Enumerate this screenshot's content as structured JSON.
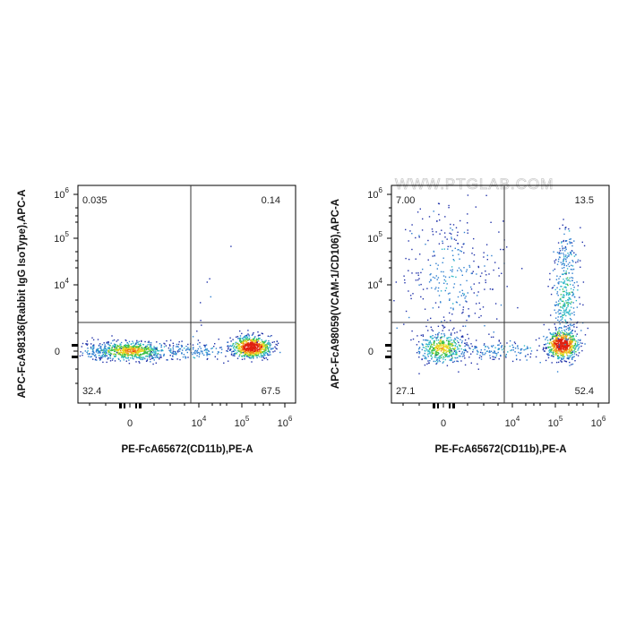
{
  "watermark": "WWW.PTGLAB.COM",
  "chart_data": [
    {
      "type": "scatter",
      "subtype": "flow-cytometry-density-dot-plot",
      "title": "",
      "xlabel": "PE-FcA65672(CD11b),PE-A",
      "ylabel": "APC-FcA98136(Rabbit IgG IsoType),APC-A",
      "x_ticks": [
        "0",
        "10^4",
        "10^5",
        "10^6"
      ],
      "y_ticks": [
        "0",
        "10^4",
        "10^5",
        "10^6"
      ],
      "quadrants": {
        "upper_left": "0.035",
        "upper_right": "0.14",
        "lower_left": "32.4",
        "lower_right": "67.5"
      },
      "populations": [
        {
          "region": "lower-left",
          "percent": 32.4
        },
        {
          "region": "lower-right",
          "percent": 67.5
        },
        {
          "region": "upper-left",
          "percent": 0.035
        },
        {
          "region": "upper-right",
          "percent": 0.14
        }
      ]
    },
    {
      "type": "scatter",
      "subtype": "flow-cytometry-density-dot-plot",
      "title": "",
      "xlabel": "PE-FcA65672(CD11b),PE-A",
      "ylabel": "APC-FcA98059(VCAM-1/CD106),APC-A",
      "x_ticks": [
        "0",
        "10^4",
        "10^5",
        "10^6"
      ],
      "y_ticks": [
        "0",
        "10^4",
        "10^5",
        "10^6"
      ],
      "quadrants": {
        "upper_left": "7.00",
        "upper_right": "13.5",
        "lower_left": "27.1",
        "lower_right": "52.4"
      },
      "populations": [
        {
          "region": "lower-left",
          "percent": 27.1
        },
        {
          "region": "lower-right",
          "percent": 52.4
        },
        {
          "region": "upper-left",
          "percent": 7.0
        },
        {
          "region": "upper-right",
          "percent": 13.5
        }
      ]
    }
  ]
}
